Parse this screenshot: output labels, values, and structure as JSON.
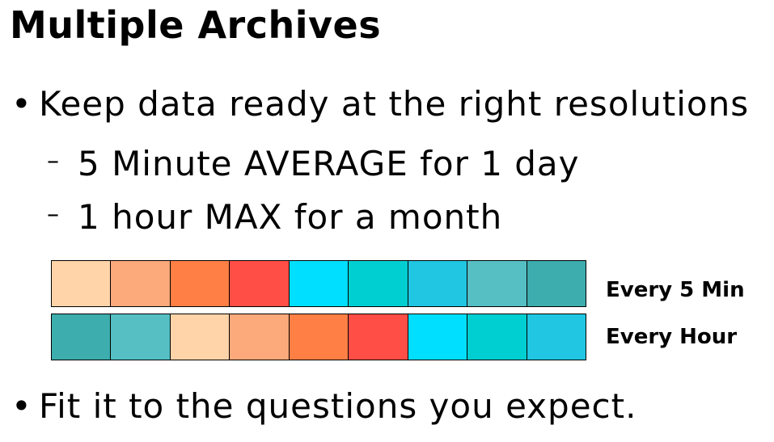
{
  "title": "Multiple Archives",
  "bullets": [
    {
      "marker": "•",
      "text": "Keep data ready at the right resolutions"
    },
    {
      "marker": "•",
      "text": "Fit it to the questions you expect."
    }
  ],
  "sub_bullets": [
    {
      "marker": "–",
      "text": "5 Minute AVERAGE for 1 day"
    },
    {
      "marker": "–",
      "text": "1 hour MAX for a month"
    }
  ],
  "strips": [
    {
      "label": "Every 5 Min",
      "colors": [
        "#FFD4A8",
        "#FCA97B",
        "#FF7F45",
        "#FF4E45",
        "#00DFFF",
        "#00CFD1",
        "#20C6E2",
        "#55BFC4",
        "#3DADAD"
      ]
    },
    {
      "label": "Every Hour",
      "colors": [
        "#3DADAD",
        "#55BFC4",
        "#FFD4A8",
        "#FCA97B",
        "#FF7F45",
        "#FF4E45",
        "#00DFFF",
        "#00CFD1",
        "#20C6E2"
      ]
    }
  ]
}
